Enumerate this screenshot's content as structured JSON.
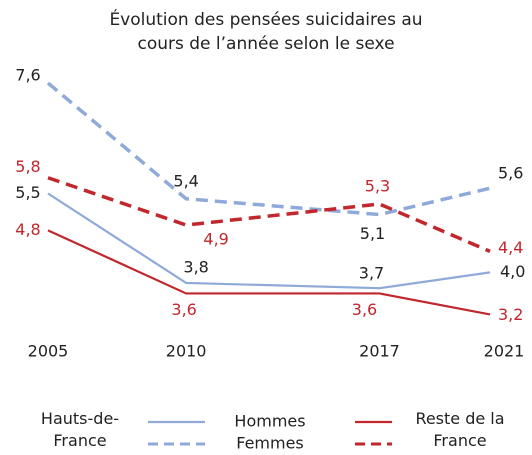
{
  "chart_data": {
    "type": "line",
    "title": "Évolution des pensées suicidaires au cours de l’année selon le sexe",
    "x": [
      2005,
      2010,
      2017,
      2021
    ],
    "xlim": [
      2005,
      2021
    ],
    "xticks": [
      2005,
      2010,
      2017,
      2021
    ],
    "ylim": [
      3,
      8
    ],
    "series": [
      {
        "region": "Hauts-de-France",
        "sex": "Hommes",
        "color": "#8fa9d9",
        "dashed": false,
        "values": [
          5.5,
          3.8,
          3.7,
          4.0
        ],
        "value_labels": [
          "5,5",
          "3,8",
          "3,7",
          "4,0"
        ]
      },
      {
        "region": "Hauts-de-France",
        "sex": "Femmes",
        "color": "#8fa9d9",
        "dashed": true,
        "values": [
          7.6,
          5.4,
          5.1,
          5.6
        ],
        "value_labels": [
          "7,6",
          "5,4",
          "5,1",
          "5,6"
        ]
      },
      {
        "region": "Reste de la France",
        "sex": "Hommes",
        "color": "#c1272d",
        "dashed": false,
        "values": [
          4.8,
          3.6,
          3.6,
          3.2
        ],
        "value_labels": [
          "4,8",
          "3,6",
          "3,6",
          "3,2"
        ]
      },
      {
        "region": "Reste de la France",
        "sex": "Femmes",
        "color": "#c1272d",
        "dashed": true,
        "values": [
          5.8,
          4.9,
          5.3,
          4.4
        ],
        "value_labels": [
          "5,8",
          "4,9",
          "5,3",
          "4,4"
        ]
      }
    ]
  }
}
